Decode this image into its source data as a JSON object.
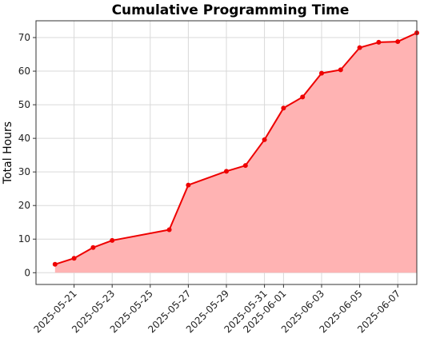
{
  "chart_data": {
    "type": "area",
    "title": "Cumulative Programming Time",
    "xlabel": "",
    "ylabel": "Total Hours",
    "x_ticks": [
      "2025-05-21",
      "2025-05-23",
      "2025-05-25",
      "2025-05-27",
      "2025-05-29",
      "2025-05-31",
      "2025-06-01",
      "2025-06-03",
      "2025-06-05",
      "2025-06-07"
    ],
    "y_ticks": [
      0,
      10,
      20,
      30,
      40,
      50,
      60,
      70
    ],
    "ylim": [
      -3.5,
      75
    ],
    "xlim": [
      "2025-05-19",
      "2025-06-08"
    ],
    "grid": true,
    "series": [
      {
        "color": "#ee0000",
        "fill_color": "#ffb3b3",
        "x": [
          "2025-05-20",
          "2025-05-21",
          "2025-05-22",
          "2025-05-23",
          "2025-05-26",
          "2025-05-27",
          "2025-05-29",
          "2025-05-30",
          "2025-05-31",
          "2025-06-01",
          "2025-06-02",
          "2025-06-03",
          "2025-06-04",
          "2025-06-05",
          "2025-06-06",
          "2025-06-07",
          "2025-06-08"
        ],
        "values": [
          2.5,
          4.3,
          7.5,
          9.6,
          12.8,
          26.1,
          30.2,
          31.9,
          39.6,
          49.0,
          52.3,
          59.4,
          60.4,
          67.0,
          68.6,
          68.8,
          71.4
        ]
      }
    ]
  }
}
